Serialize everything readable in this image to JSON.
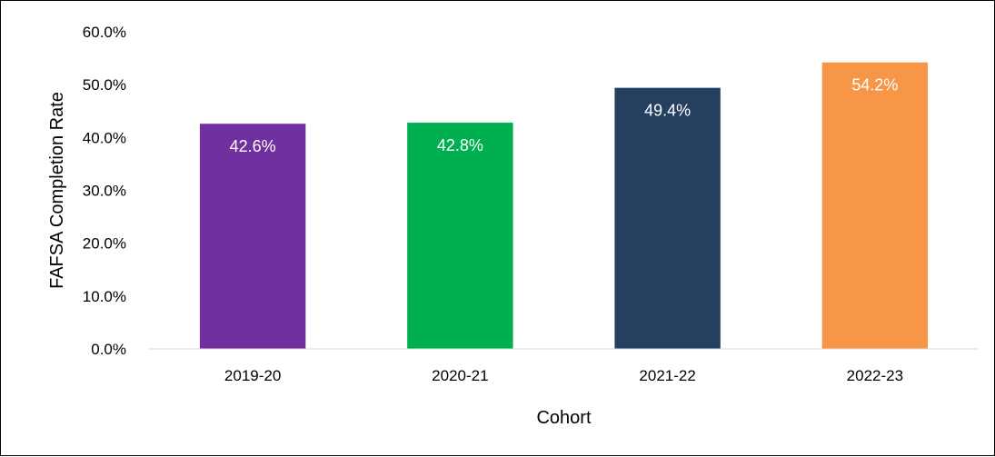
{
  "chart_data": {
    "type": "bar",
    "categories": [
      "2019-20",
      "2020-21",
      "2021-22",
      "2022-23"
    ],
    "values": [
      42.6,
      42.8,
      49.4,
      54.2
    ],
    "data_labels": [
      "42.6%",
      "42.8%",
      "49.4%",
      "54.2%"
    ],
    "colors": [
      "#7030a0",
      "#00b050",
      "#243f60",
      "#f79646"
    ],
    "xlabel": "Cohort",
    "ylabel": "FAFSA Completion Rate",
    "ylim": [
      0,
      60
    ],
    "yticks": [
      0,
      10,
      20,
      30,
      40,
      50,
      60
    ],
    "ytick_labels": [
      "0.0%",
      "10.0%",
      "20.0%",
      "30.0%",
      "40.0%",
      "50.0%",
      "60.0%"
    ],
    "grid": false,
    "legend": "none"
  }
}
